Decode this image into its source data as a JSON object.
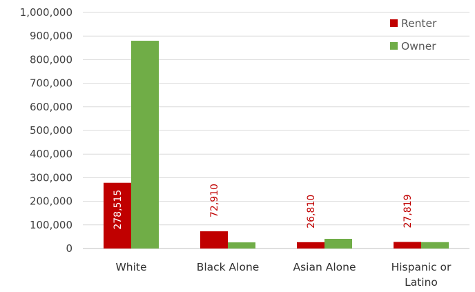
{
  "chart_data": {
    "type": "bar",
    "title": "",
    "xlabel": "",
    "ylabel": "",
    "categories": [
      [
        "White"
      ],
      [
        "Black Alone"
      ],
      [
        "Asian Alone"
      ],
      [
        "Hispanic or",
        "Latino"
      ]
    ],
    "series": [
      {
        "name": "Renter",
        "color": "#c00000",
        "values": [
          278515,
          72910,
          26810,
          27819
        ],
        "labels": [
          "278,515",
          "72,910",
          "26,810",
          "27,819"
        ]
      },
      {
        "name": "Owner",
        "color": "#70ad47",
        "values": [
          880000,
          26000,
          41000,
          27000
        ]
      }
    ],
    "ylim": [
      0,
      1000000
    ],
    "yticks": [
      "0",
      "100,000",
      "200,000",
      "300,000",
      "400,000",
      "500,000",
      "600,000",
      "700,000",
      "800,000",
      "900,000",
      "1,000,000"
    ],
    "grid": true,
    "legend_position": "top-right"
  }
}
